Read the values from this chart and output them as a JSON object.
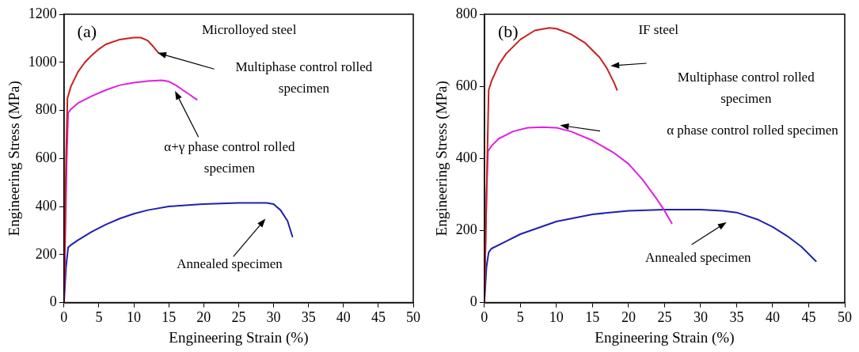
{
  "chart_data": [
    {
      "type": "line",
      "xlabel": "Engineering Strain (%)",
      "ylabel": "Engineering Stress (MPa)",
      "xlim": [
        0,
        50
      ],
      "xticks": [
        0,
        5,
        10,
        15,
        20,
        25,
        30,
        35,
        40,
        45,
        50
      ],
      "ylim": [
        0,
        1200
      ],
      "yticks": [
        0,
        200,
        400,
        600,
        800,
        1000,
        1200
      ],
      "grid": false,
      "marker": "none",
      "line_style": "solid",
      "annotations": [
        "(a)",
        "Microlloyed steel",
        "Multiphase control rolled specimen",
        "α+γ phase control rolled specimen",
        "Annealed specimen"
      ],
      "series": [
        {
          "color": "#c8201e",
          "x": [
            0,
            0.3,
            0.5,
            1,
            2,
            3,
            4,
            5,
            6,
            8,
            10,
            11,
            12,
            12.8,
            13.5
          ],
          "values": [
            0,
            600,
            850,
            900,
            960,
            1000,
            1030,
            1055,
            1075,
            1095,
            1103,
            1103,
            1090,
            1065,
            1040
          ]
        },
        {
          "color": "#e020e0",
          "x": [
            0,
            0.4,
            0.6,
            1,
            2,
            4,
            6,
            8,
            10,
            12,
            14,
            15,
            16,
            17,
            18,
            19
          ],
          "values": [
            0,
            600,
            790,
            805,
            830,
            860,
            885,
            905,
            915,
            922,
            925,
            920,
            905,
            885,
            865,
            845
          ]
        },
        {
          "color": "#2020b0",
          "x": [
            0,
            0.3,
            0.6,
            1,
            2,
            4,
            6,
            8,
            10,
            12,
            15,
            20,
            25,
            29,
            30,
            31,
            32,
            32.7
          ],
          "values": [
            0,
            150,
            230,
            240,
            260,
            295,
            325,
            350,
            370,
            385,
            400,
            410,
            415,
            415,
            410,
            385,
            340,
            275
          ]
        }
      ]
    },
    {
      "type": "line",
      "xlabel": "Engineering Strain (%)",
      "ylabel": "Engineering Stress (MPa)",
      "xlim": [
        0,
        50
      ],
      "xticks": [
        0,
        5,
        10,
        15,
        20,
        25,
        30,
        35,
        40,
        45,
        50
      ],
      "ylim": [
        0,
        800
      ],
      "yticks": [
        0,
        200,
        400,
        600,
        800
      ],
      "grid": false,
      "marker": "none",
      "line_style": "solid",
      "annotations": [
        "(b)",
        "IF steel",
        "Multiphase control rolled specimen",
        "α phase control rolled specimen",
        "Annealed specimen"
      ],
      "series": [
        {
          "color": "#c8201e",
          "x": [
            0,
            0.3,
            0.6,
            1,
            2,
            3,
            5,
            7,
            9,
            10,
            12,
            14,
            16,
            17,
            18,
            18.4
          ],
          "values": [
            0,
            300,
            590,
            615,
            660,
            690,
            730,
            755,
            762,
            760,
            745,
            720,
            680,
            650,
            610,
            590
          ]
        },
        {
          "color": "#e020e0",
          "x": [
            0,
            0.3,
            0.5,
            1,
            2,
            4,
            6,
            8,
            10,
            12,
            15,
            18,
            20,
            22,
            24,
            25,
            26
          ],
          "values": [
            0,
            300,
            420,
            435,
            455,
            475,
            485,
            487,
            485,
            475,
            450,
            415,
            385,
            340,
            285,
            255,
            220
          ]
        },
        {
          "color": "#2020b0",
          "x": [
            0,
            0.3,
            0.6,
            1,
            3,
            5,
            10,
            15,
            20,
            25,
            30,
            33,
            35,
            38,
            40,
            42,
            44,
            46
          ],
          "values": [
            0,
            100,
            140,
            150,
            170,
            190,
            225,
            245,
            255,
            258,
            258,
            255,
            250,
            230,
            210,
            185,
            155,
            115
          ]
        }
      ]
    }
  ]
}
